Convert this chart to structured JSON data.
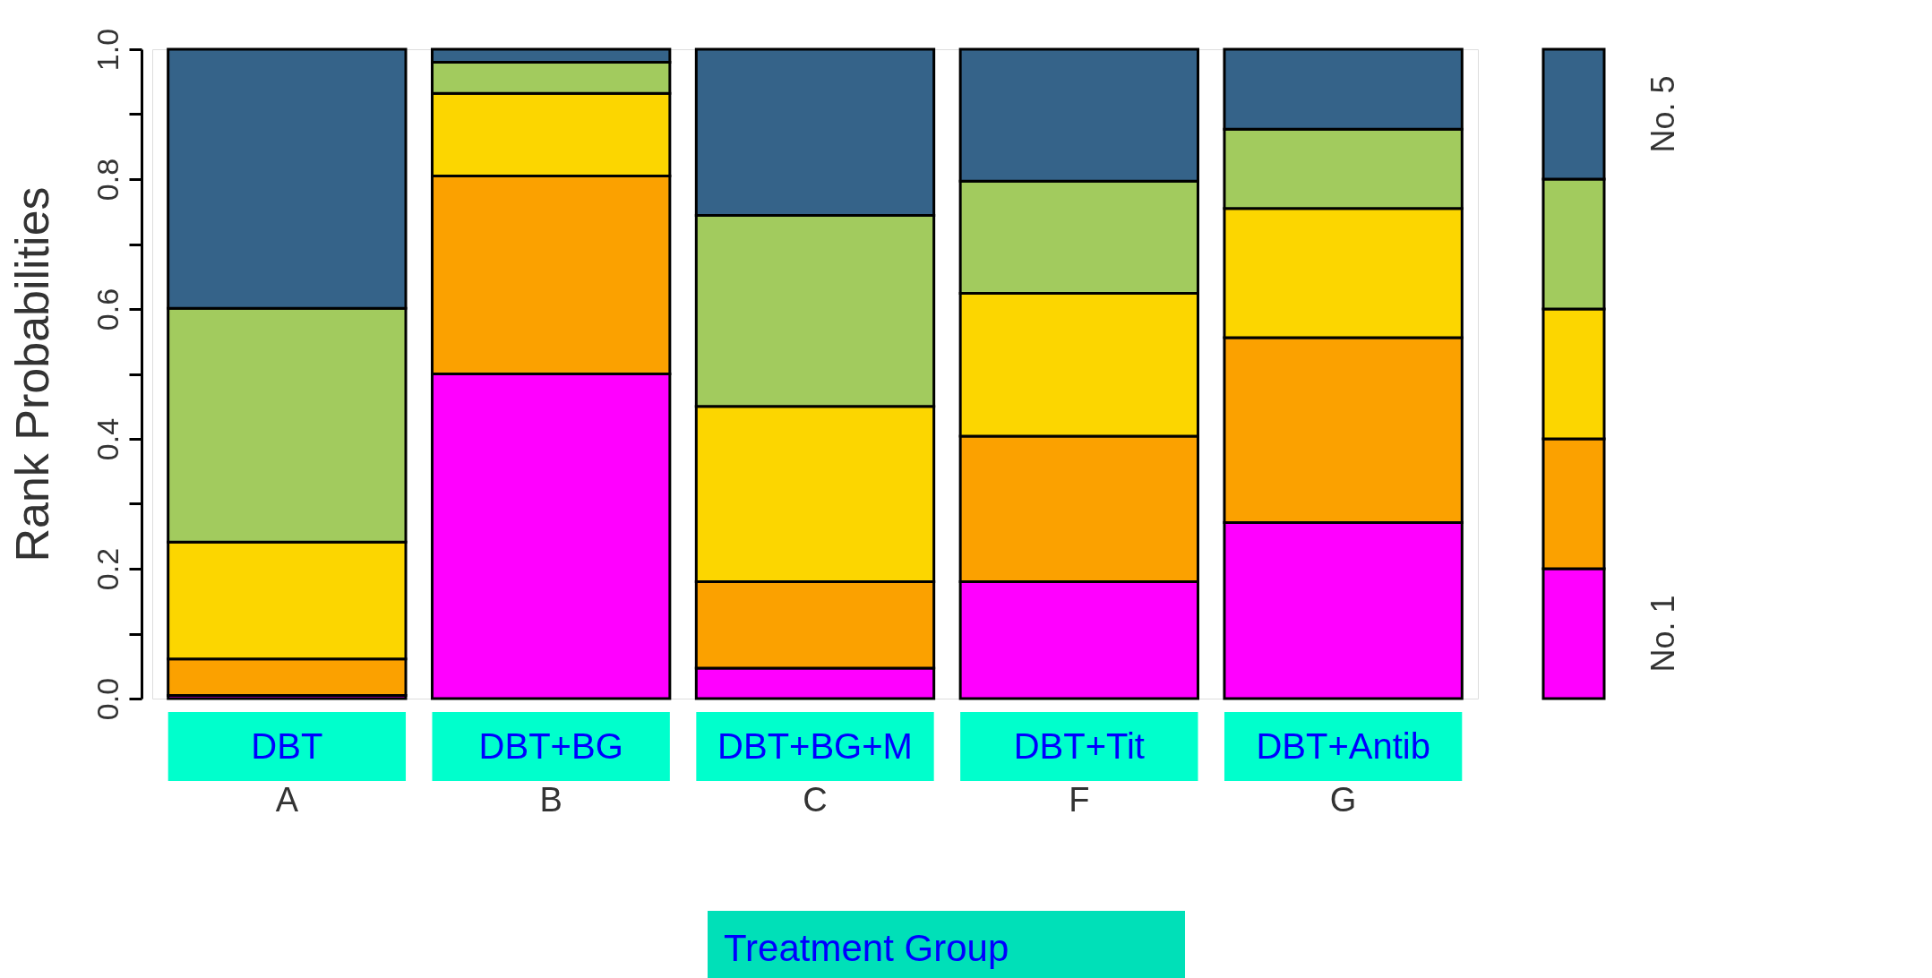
{
  "chart_data": {
    "type": "bar",
    "stacked": true,
    "ylabel": "Rank Probabilities",
    "xlabel": "Treatment Group",
    "categories": [
      "A",
      "B",
      "C",
      "F",
      "G"
    ],
    "annotations": [
      "DBT",
      "DBT+BG",
      "DBT+BG+M",
      "DBT+Tit",
      "DBT+Antib"
    ],
    "series": [
      {
        "name": "No. 1",
        "color": "#ff00ff",
        "values": [
          0.005,
          0.5,
          0.047,
          0.18,
          0.271
        ]
      },
      {
        "color": "#fba100",
        "values": [
          0.056,
          0.305,
          0.133,
          0.224,
          0.285
        ]
      },
      {
        "color": "#fcd600",
        "values": [
          0.18,
          0.127,
          0.27,
          0.22,
          0.199
        ]
      },
      {
        "color": "#a2cb5e",
        "values": [
          0.36,
          0.048,
          0.294,
          0.173,
          0.122
        ]
      },
      {
        "name": "No. 5",
        "color": "#356389",
        "values": [
          0.399,
          0.02,
          0.256,
          0.203,
          0.123
        ]
      }
    ],
    "ylim": [
      0,
      1
    ],
    "yticks": [
      {
        "value": 0,
        "label": "0.0"
      },
      {
        "value": 0.1,
        "label": null
      },
      {
        "value": 0.2,
        "label": "0.2"
      },
      {
        "value": 0.3,
        "label": null
      },
      {
        "value": 0.4,
        "label": "0.4"
      },
      {
        "value": 0.5,
        "label": null
      },
      {
        "value": 0.6,
        "label": "0.6"
      },
      {
        "value": 0.7,
        "label": null
      },
      {
        "value": 0.8,
        "label": "0.8"
      },
      {
        "value": 0.9,
        "label": null
      },
      {
        "value": 1,
        "label": "1.0"
      }
    ],
    "legend": "right"
  }
}
